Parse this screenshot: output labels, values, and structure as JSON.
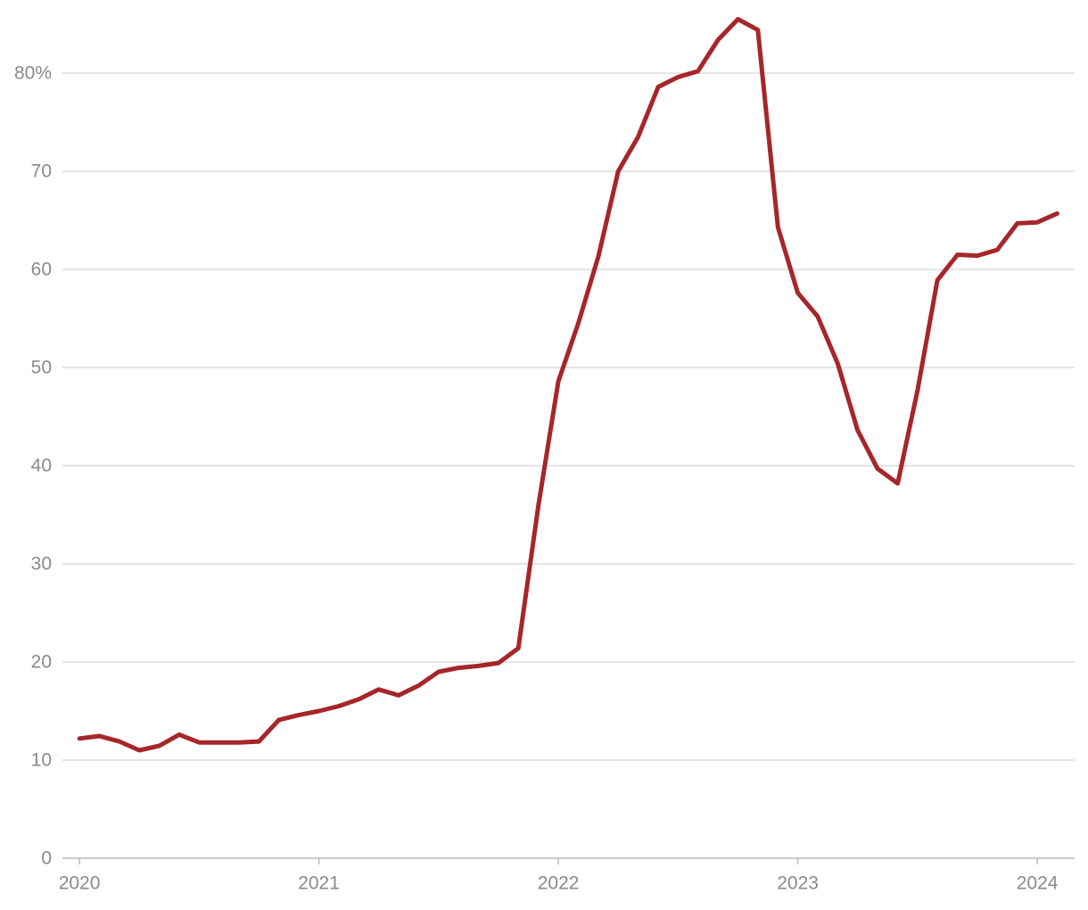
{
  "chart_data": {
    "type": "line",
    "x": [
      2020,
      2020.083,
      2020.167,
      2020.25,
      2020.333,
      2020.417,
      2020.5,
      2020.583,
      2020.667,
      2020.75,
      2020.833,
      2020.917,
      2021,
      2021.083,
      2021.167,
      2021.25,
      2021.333,
      2021.417,
      2021.5,
      2021.583,
      2021.667,
      2021.75,
      2021.833,
      2021.917,
      2022,
      2022.083,
      2022.167,
      2022.25,
      2022.333,
      2022.417,
      2022.5,
      2022.583,
      2022.667,
      2022.75,
      2022.833,
      2022.917,
      2023,
      2023.083,
      2023.167,
      2023.25,
      2023.333,
      2023.417,
      2023.5,
      2023.583,
      2023.667,
      2023.75,
      2023.833,
      2023.917,
      2024,
      2024.083
    ],
    "values": [
      12.2,
      12.45,
      11.9,
      11.0,
      11.45,
      12.6,
      11.8,
      11.8,
      11.8,
      11.9,
      14.1,
      14.6,
      15.0,
      15.5,
      16.2,
      17.2,
      16.6,
      17.6,
      19.0,
      19.4,
      19.6,
      19.9,
      21.4,
      36.0,
      48.6,
      54.5,
      61.3,
      70.0,
      73.5,
      78.6,
      79.6,
      80.2,
      83.4,
      85.5,
      84.4,
      64.3,
      57.6,
      55.2,
      50.4,
      43.6,
      39.7,
      38.2,
      47.7,
      58.9,
      61.5,
      61.4,
      62.0,
      64.7,
      64.8,
      65.7
    ],
    "color": "#a6262a",
    "xlim": [
      2019.929,
      2024.156
    ],
    "xticks": [
      2020,
      2021,
      2022,
      2023,
      2024
    ],
    "ylim": [
      0,
      86
    ],
    "yticks": [
      0,
      10,
      20,
      30,
      40,
      50,
      60,
      70,
      {
        "value": 80,
        "label": "80%"
      }
    ],
    "grid": true
  }
}
